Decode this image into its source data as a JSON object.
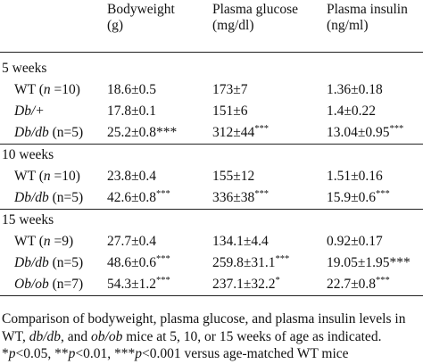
{
  "table": {
    "headers": [
      {
        "line1": "",
        "line2": ""
      },
      {
        "line1": "Bodyweight",
        "line2": "(g)"
      },
      {
        "line1": "Plasma glucose",
        "line2": "(mg/dl)"
      },
      {
        "line1": "Plasma insulin",
        "line2": "(ng/ml)"
      }
    ],
    "groups": [
      {
        "label": "5 weeks",
        "rows": [
          {
            "label_prefix": "WT (",
            "label_italic": "n",
            "label_suffix": " =10)",
            "bodyweight": "18.6±0.5",
            "bodyweight_sig": "",
            "glucose": "173±7",
            "glucose_sig": "",
            "insulin": "1.36±0.18",
            "insulin_sig": ""
          },
          {
            "label_prefix": "",
            "label_italic": "Db/+",
            "label_suffix": "",
            "bodyweight": "17.8±0.1",
            "bodyweight_sig": "",
            "glucose": "151±6",
            "glucose_sig": "",
            "insulin": "1.4±0.22",
            "insulin_sig": ""
          },
          {
            "label_prefix": "",
            "label_italic": "Db/db",
            "label_suffix": " (n=5)",
            "bodyweight": "25.2±0.8***",
            "bodyweight_sig": "",
            "glucose": "312±44",
            "glucose_sig": "***",
            "insulin": "13.04±0.95",
            "insulin_sig": "***"
          }
        ]
      },
      {
        "label": "10 weeks",
        "rows": [
          {
            "label_prefix": "WT (",
            "label_italic": "n",
            "label_suffix": " =10)",
            "bodyweight": "23.8±0.4",
            "bodyweight_sig": "",
            "glucose": "155±12",
            "glucose_sig": "",
            "insulin": "1.51±0.16",
            "insulin_sig": ""
          },
          {
            "label_prefix": "",
            "label_italic": "Db/db",
            "label_suffix": " (n=5)",
            "bodyweight": "42.6±0.8",
            "bodyweight_sig": "***",
            "glucose": "336±38",
            "glucose_sig": "***",
            "insulin": "15.9±0.6",
            "insulin_sig": "***"
          }
        ]
      },
      {
        "label": "15 weeks",
        "rows": [
          {
            "label_prefix": "WT (",
            "label_italic": "n",
            "label_suffix": " =9)",
            "bodyweight": "27.7±0.4",
            "bodyweight_sig": "",
            "glucose": "134.1±4.4",
            "glucose_sig": "",
            "insulin": "0.92±0.17",
            "insulin_sig": ""
          },
          {
            "label_prefix": "",
            "label_italic": "Db/db",
            "label_suffix": " (n=5)",
            "bodyweight": "48.6±0.6",
            "bodyweight_sig": "***",
            "glucose": "259.8±31.1",
            "glucose_sig": "***",
            "insulin": "19.05±1.95***",
            "insulin_sig": ""
          },
          {
            "label_prefix": "",
            "label_italic": "Ob/ob",
            "label_suffix": " (n=7)",
            "bodyweight": "54.3±1.2",
            "bodyweight_sig": "***",
            "glucose": "237.1±32.2",
            "glucose_sig": "*",
            "insulin": "22.7±0.8",
            "insulin_sig": "***"
          }
        ]
      }
    ]
  },
  "caption": {
    "line1": "Comparison of bodyweight, plasma glucose, and plasma insulin levels in",
    "line2_a": "WT, ",
    "line2_b": "db/db",
    "line2_c": ", and ",
    "line2_d": "ob/ob",
    "line2_e": " mice at 5, 10, or 15 weeks of age as indicated.",
    "line3_a": "*",
    "line3_b": "p",
    "line3_c": "<0.05, **",
    "line3_d": "p",
    "line3_e": "<0.01, ***",
    "line3_f": "p",
    "line3_g": "<0.001 versus age-matched WT mice"
  }
}
